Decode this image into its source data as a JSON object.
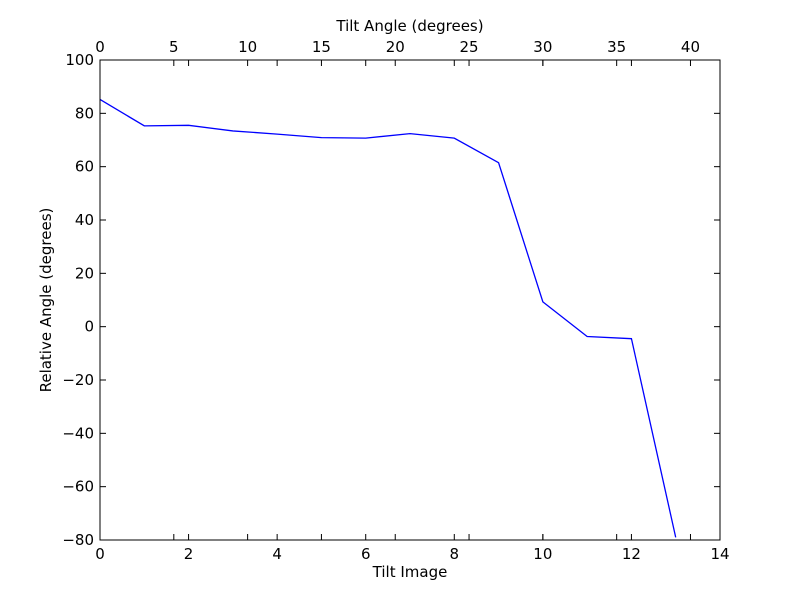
{
  "chart_data": {
    "type": "line",
    "title": "",
    "xlabel": "Tilt Image",
    "ylabel": "Relative Angle (degrees)",
    "x2label": "Tilt Angle (degrees)",
    "xlim": [
      0,
      14
    ],
    "ylim": [
      -80,
      100
    ],
    "x2lim": [
      0,
      42
    ],
    "xticks": [
      "0",
      "2",
      "4",
      "6",
      "8",
      "10",
      "12",
      "14"
    ],
    "yticks": [
      "−80",
      "−60",
      "−40",
      "−20",
      "0",
      "20",
      "40",
      "60",
      "80",
      "100"
    ],
    "x2ticks": [
      "0",
      "5",
      "10",
      "15",
      "20",
      "25",
      "30",
      "35",
      "40"
    ],
    "grid": false,
    "line_color": "#0000ff",
    "series": [
      {
        "x": [
          0,
          1,
          2,
          3,
          4,
          5,
          6,
          7,
          8,
          9,
          10,
          11,
          12,
          13
        ],
        "values": [
          85.2,
          75.3,
          75.5,
          73.4,
          72.2,
          70.9,
          70.7,
          72.4,
          70.7,
          61.5,
          9.3,
          -3.7,
          -4.5,
          -79
        ]
      }
    ]
  }
}
